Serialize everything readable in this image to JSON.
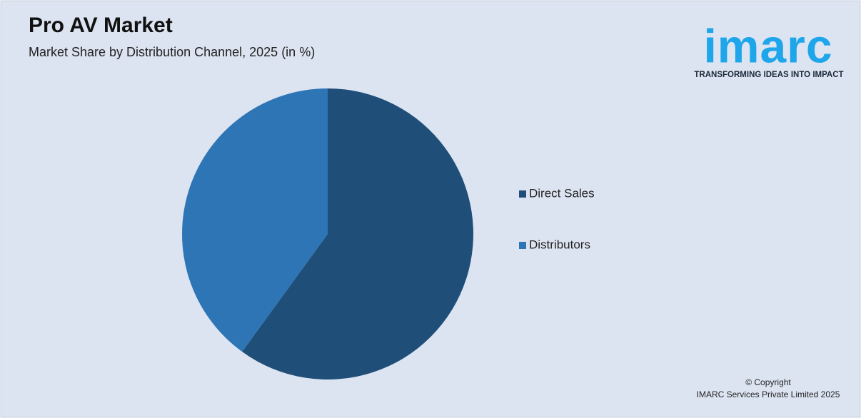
{
  "chart_data": {
    "type": "pie",
    "title": "Pro AV Market",
    "subtitle": "Market Share by Distribution Channel, 2025 (in %)",
    "categories": [
      "Direct Sales",
      "Distributors"
    ],
    "values": [
      60,
      40
    ],
    "colors": [
      "#1f4e79",
      "#2e75b6"
    ]
  },
  "logo": {
    "name": "imarc",
    "tagline": "TRANSFORMING IDEAS INTO IMPACT"
  },
  "footer": {
    "line1": "© Copyright",
    "line2": "IMARC Services Private Limited 2025"
  }
}
